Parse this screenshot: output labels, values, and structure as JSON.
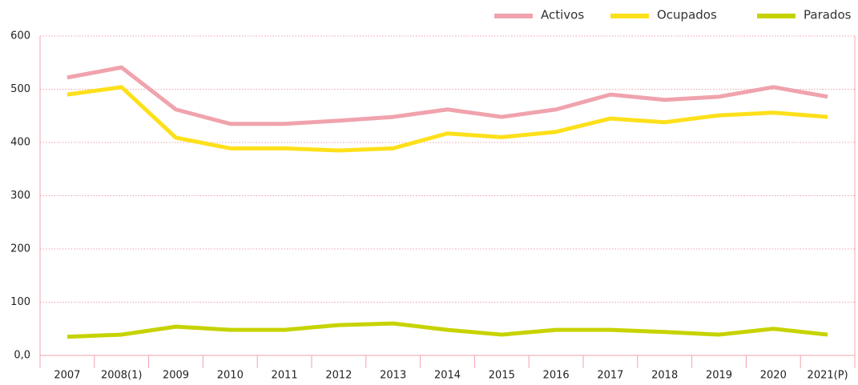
{
  "chart_data": {
    "type": "line",
    "categories": [
      "2007",
      "2008(1)",
      "2009",
      "2010",
      "2011",
      "2012",
      "2013",
      "2014",
      "2015",
      "2016",
      "2017",
      "2018",
      "2019",
      "2020",
      "2021(P)"
    ],
    "series": [
      {
        "name": "Activos",
        "color": "#f0a3ad",
        "values": [
          522,
          541,
          462,
          435,
          435,
          441,
          448,
          462,
          448,
          462,
          490,
          480,
          486,
          504,
          486
        ]
      },
      {
        "name": "Ocupados",
        "color": "#fde01a",
        "values": [
          490,
          504,
          409,
          389,
          389,
          385,
          389,
          417,
          410,
          420,
          445,
          438,
          451,
          456,
          448
        ]
      },
      {
        "name": "Parados",
        "color": "#c6d300",
        "values": [
          35,
          39,
          54,
          48,
          48,
          57,
          60,
          48,
          39,
          48,
          48,
          44,
          39,
          50,
          39
        ]
      }
    ],
    "ylim": [
      0,
      600
    ],
    "yticks": [
      {
        "value": 0,
        "label": "0,0"
      },
      100,
      200,
      300,
      400,
      500,
      600
    ],
    "grid": true,
    "legend": "top-right"
  }
}
